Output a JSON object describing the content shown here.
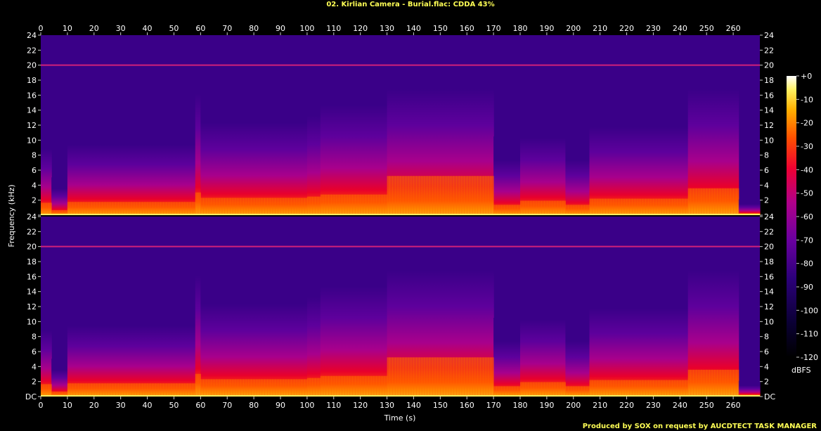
{
  "chart_data": {
    "type": "heatmap",
    "title": "02. Kirlian Camera - Burial.flac: CDDA 43%",
    "xlabel": "Time (s)",
    "ylabel": "Frequency (kHz)",
    "xlim": [
      0,
      270
    ],
    "ylim": [
      0,
      24
    ],
    "x_ticks": [
      0,
      10,
      20,
      30,
      40,
      50,
      60,
      70,
      80,
      90,
      100,
      110,
      120,
      130,
      140,
      150,
      160,
      170,
      180,
      190,
      200,
      210,
      220,
      230,
      240,
      250,
      260
    ],
    "channels": [
      {
        "y_ticks": [
          "24",
          "22",
          "20",
          "18",
          "16",
          "14",
          "12",
          "10",
          "8",
          "6",
          "4",
          "2",
          ""
        ]
      },
      {
        "y_ticks": [
          "24",
          "22",
          "20",
          "18",
          "16",
          "14",
          "12",
          "10",
          "8",
          "6",
          "4",
          "2",
          "DC"
        ]
      }
    ],
    "colorbar": {
      "label": "dBFS",
      "range": [
        -120,
        0
      ],
      "ticks": [
        "+0",
        "-10",
        "-20",
        "-30",
        "-40",
        "-50",
        "-60",
        "-70",
        "-80",
        "-90",
        "-100",
        "-110",
        "-120"
      ]
    },
    "tone_line_khz": 20,
    "level_profile_kHz_cutoff": {
      "segments_s": [
        [
          0,
          4
        ],
        [
          4,
          10
        ],
        [
          10,
          58
        ],
        [
          58,
          60
        ],
        [
          60,
          100
        ],
        [
          100,
          105
        ],
        [
          105,
          130
        ],
        [
          130,
          170
        ],
        [
          170,
          180
        ],
        [
          180,
          197
        ],
        [
          197,
          206
        ],
        [
          206,
          243
        ],
        [
          243,
          262
        ],
        [
          262,
          270
        ]
      ],
      "cutoff_khz": [
        3.0,
        1.2,
        3.2,
        5.5,
        4.2,
        4.5,
        5.0,
        9.5,
        2.5,
        3.5,
        2.5,
        4.0,
        6.5,
        0.5
      ]
    }
  },
  "footer": "Produced by SOX on request by AUCDTECT TASK MANAGER",
  "colors": {
    "background": "#000000",
    "title": "#ffff55"
  }
}
